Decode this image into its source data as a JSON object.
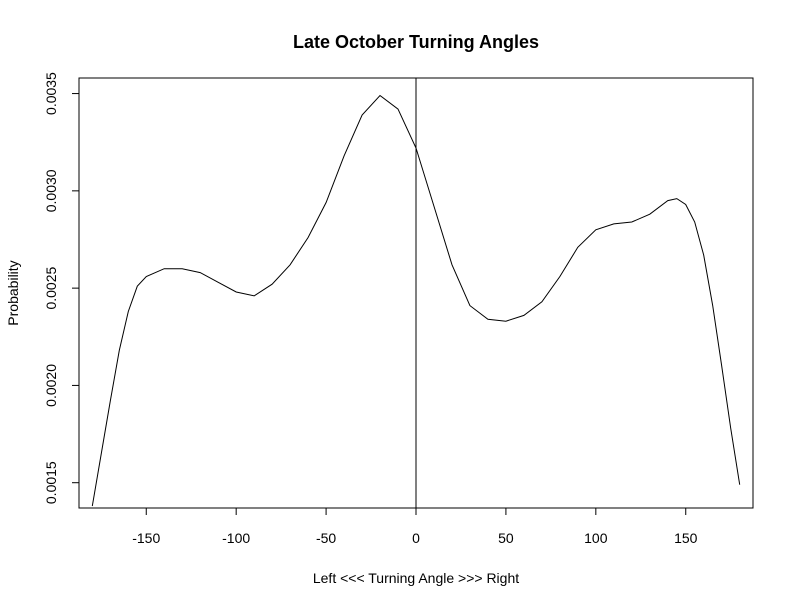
{
  "chart_data": {
    "type": "line",
    "title": "Late October Turning Angles",
    "xlabel": "Left <<< Turning Angle >>> Right",
    "ylabel": "Probability",
    "xlim": [
      -180,
      180
    ],
    "ylim": [
      0.00137,
      0.00358
    ],
    "x_ticks": [
      -150,
      -100,
      -50,
      0,
      50,
      100,
      150
    ],
    "x_tick_labels": [
      "-150",
      "-100",
      "-50",
      "0",
      "50",
      "100",
      "150"
    ],
    "y_ticks": [
      0.0015,
      0.002,
      0.0025,
      0.003,
      0.0035
    ],
    "y_tick_labels": [
      "0.0015",
      "0.0020",
      "0.0025",
      "0.0030",
      "0.0035"
    ],
    "grid": false,
    "reference_line": {
      "x": 0
    },
    "series": [
      {
        "color": "#000000",
        "points": [
          [
            -180,
            0.00138
          ],
          [
            -175,
            0.00165
          ],
          [
            -170,
            0.00192
          ],
          [
            -165,
            0.00218
          ],
          [
            -160,
            0.00238
          ],
          [
            -155,
            0.00251
          ],
          [
            -150,
            0.00256
          ],
          [
            -140,
            0.0026
          ],
          [
            -130,
            0.0026
          ],
          [
            -120,
            0.00258
          ],
          [
            -110,
            0.00253
          ],
          [
            -100,
            0.00248
          ],
          [
            -90,
            0.00246
          ],
          [
            -80,
            0.00252
          ],
          [
            -70,
            0.00262
          ],
          [
            -60,
            0.00276
          ],
          [
            -50,
            0.00294
          ],
          [
            -40,
            0.00318
          ],
          [
            -30,
            0.00339
          ],
          [
            -20,
            0.00349
          ],
          [
            -10,
            0.00342
          ],
          [
            0,
            0.00322
          ],
          [
            10,
            0.00292
          ],
          [
            20,
            0.00262
          ],
          [
            30,
            0.00241
          ],
          [
            40,
            0.00234
          ],
          [
            50,
            0.00233
          ],
          [
            60,
            0.00236
          ],
          [
            70,
            0.00243
          ],
          [
            80,
            0.00256
          ],
          [
            90,
            0.00271
          ],
          [
            100,
            0.0028
          ],
          [
            110,
            0.00283
          ],
          [
            120,
            0.00284
          ],
          [
            130,
            0.00288
          ],
          [
            140,
            0.00295
          ],
          [
            145,
            0.00296
          ],
          [
            150,
            0.00293
          ],
          [
            155,
            0.00284
          ],
          [
            160,
            0.00267
          ],
          [
            165,
            0.00241
          ],
          [
            170,
            0.0021
          ],
          [
            175,
            0.00178
          ],
          [
            180,
            0.00149
          ]
        ]
      }
    ]
  }
}
